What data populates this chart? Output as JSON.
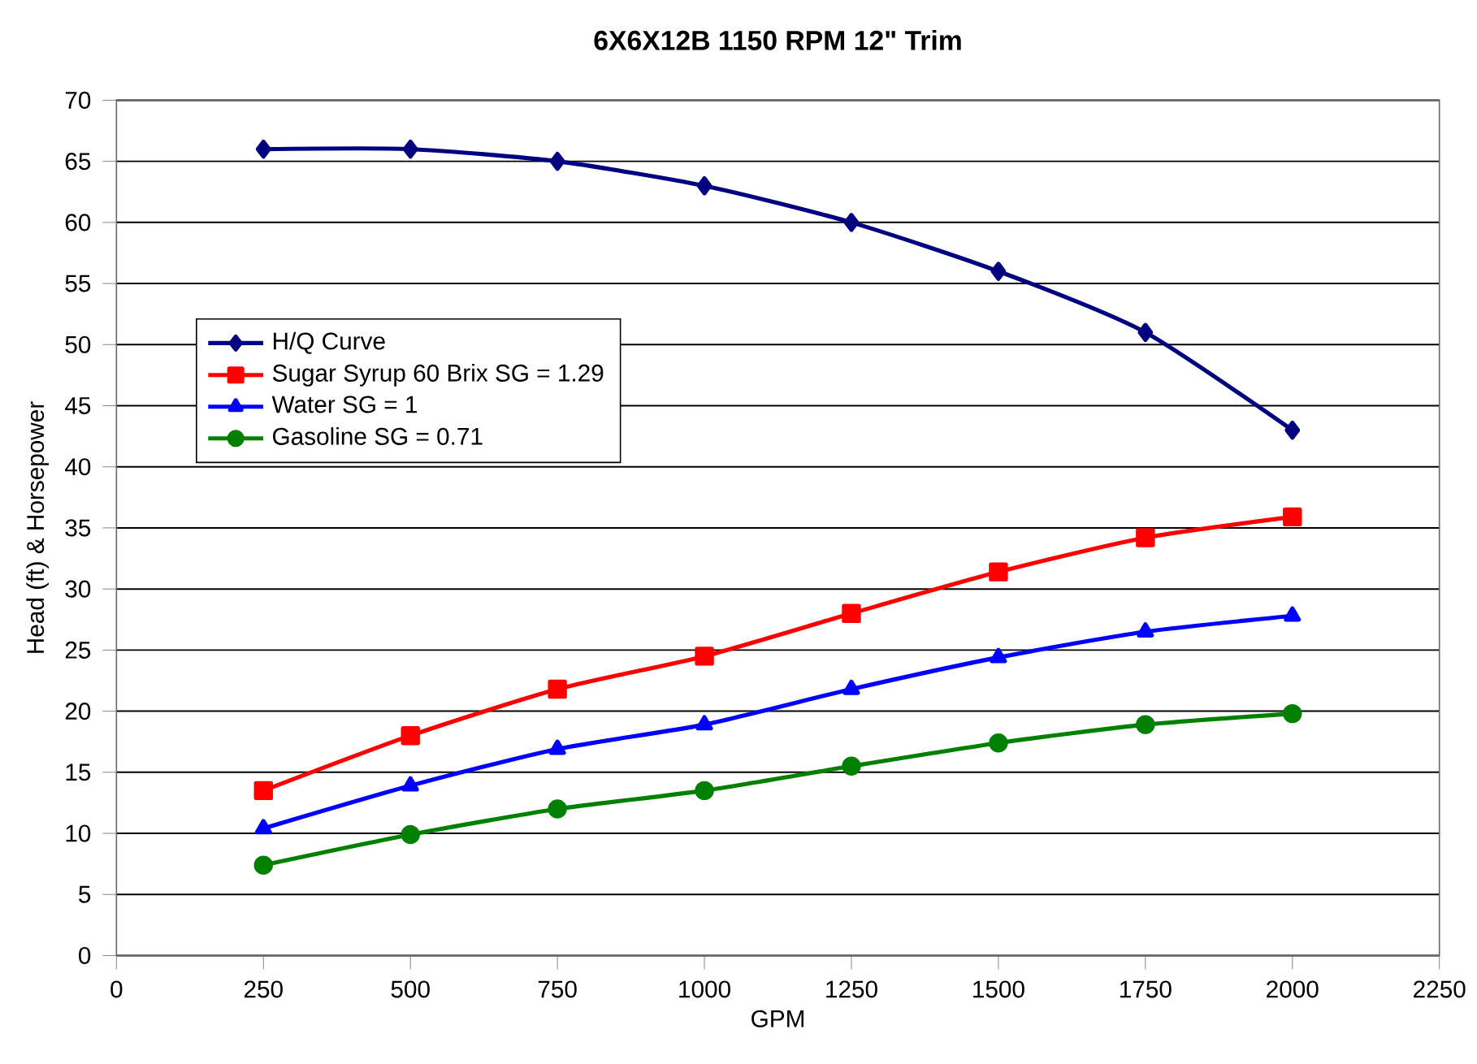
{
  "chart_data": {
    "type": "line",
    "title": "6X6X12B 1150 RPM 12\" Trim",
    "xlabel": "GPM",
    "ylabel": "Head (ft) & Horsepower",
    "x": [
      250,
      500,
      750,
      1000,
      1250,
      1500,
      1750,
      2000
    ],
    "series": [
      {
        "name": "H/Q Curve",
        "color": "#000080",
        "marker": "diamond",
        "values": [
          66,
          66,
          65,
          63,
          60,
          56,
          51,
          43
        ]
      },
      {
        "name": "Sugar Syrup 60 Brix  SG = 1.29",
        "color": "#ff0000",
        "marker": "square",
        "values": [
          13.5,
          18,
          21.8,
          24.5,
          28,
          31.4,
          34.2,
          35.9
        ]
      },
      {
        "name": "Water  SG = 1",
        "color": "#0000ff",
        "marker": "triangle",
        "values": [
          10.4,
          13.9,
          16.9,
          18.9,
          21.8,
          24.4,
          26.5,
          27.8
        ]
      },
      {
        "name": "Gasoline  SG = 0.71",
        "color": "#008000",
        "marker": "circle",
        "values": [
          7.4,
          9.9,
          12,
          13.5,
          15.5,
          17.4,
          18.9,
          19.8
        ]
      }
    ],
    "xlim": [
      0,
      2250
    ],
    "xticks": [
      0,
      250,
      500,
      750,
      1000,
      1250,
      1500,
      1750,
      2000,
      2250
    ],
    "ylim": [
      0,
      70
    ],
    "yticks": [
      0,
      5,
      10,
      15,
      20,
      25,
      30,
      35,
      40,
      45,
      50,
      55,
      60,
      65,
      70
    ],
    "grid": "y",
    "legend": "left",
    "line_style": "solid"
  }
}
